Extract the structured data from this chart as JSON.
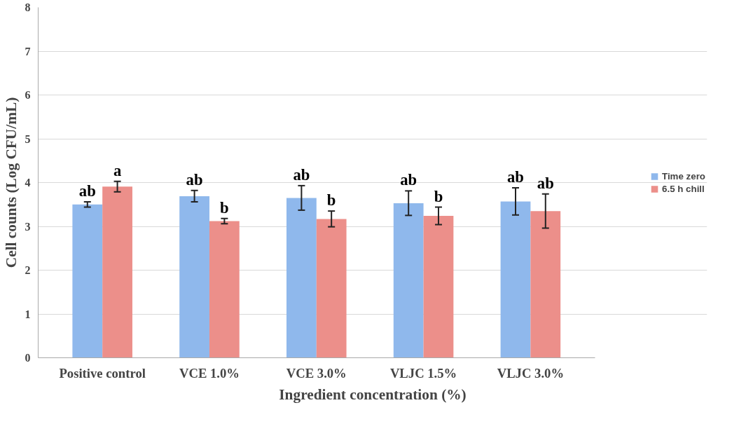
{
  "chart_data": {
    "type": "bar",
    "xlabel": "Ingredient concentration (%)",
    "ylabel": "Cell counts (Log CFU/mL)",
    "categories": [
      "Positive control",
      "VCE 1.0%",
      "VCE 3.0%",
      "VLJC 1.5%",
      "VLJC 3.0%"
    ],
    "series": [
      {
        "name": "Time zero",
        "color": "#8fb8ec",
        "values": [
          3.5,
          3.69,
          3.65,
          3.53,
          3.57
        ],
        "errors": [
          0.06,
          0.13,
          0.28,
          0.28,
          0.31
        ],
        "value_labels": [
          "ab",
          "ab",
          "ab",
          "ab",
          "ab"
        ]
      },
      {
        "name": "6.5 h chill",
        "color": "#ec8f8a",
        "values": [
          3.91,
          3.12,
          3.17,
          3.24,
          3.35
        ],
        "errors": [
          0.12,
          0.06,
          0.18,
          0.2,
          0.39
        ],
        "value_labels": [
          "a",
          "b",
          "b",
          "b",
          "ab"
        ]
      }
    ],
    "ylim": [
      0,
      8
    ],
    "yticks": [
      0,
      1,
      2,
      3,
      4,
      5,
      6,
      7,
      8
    ],
    "grid": "y",
    "legend": "right"
  }
}
